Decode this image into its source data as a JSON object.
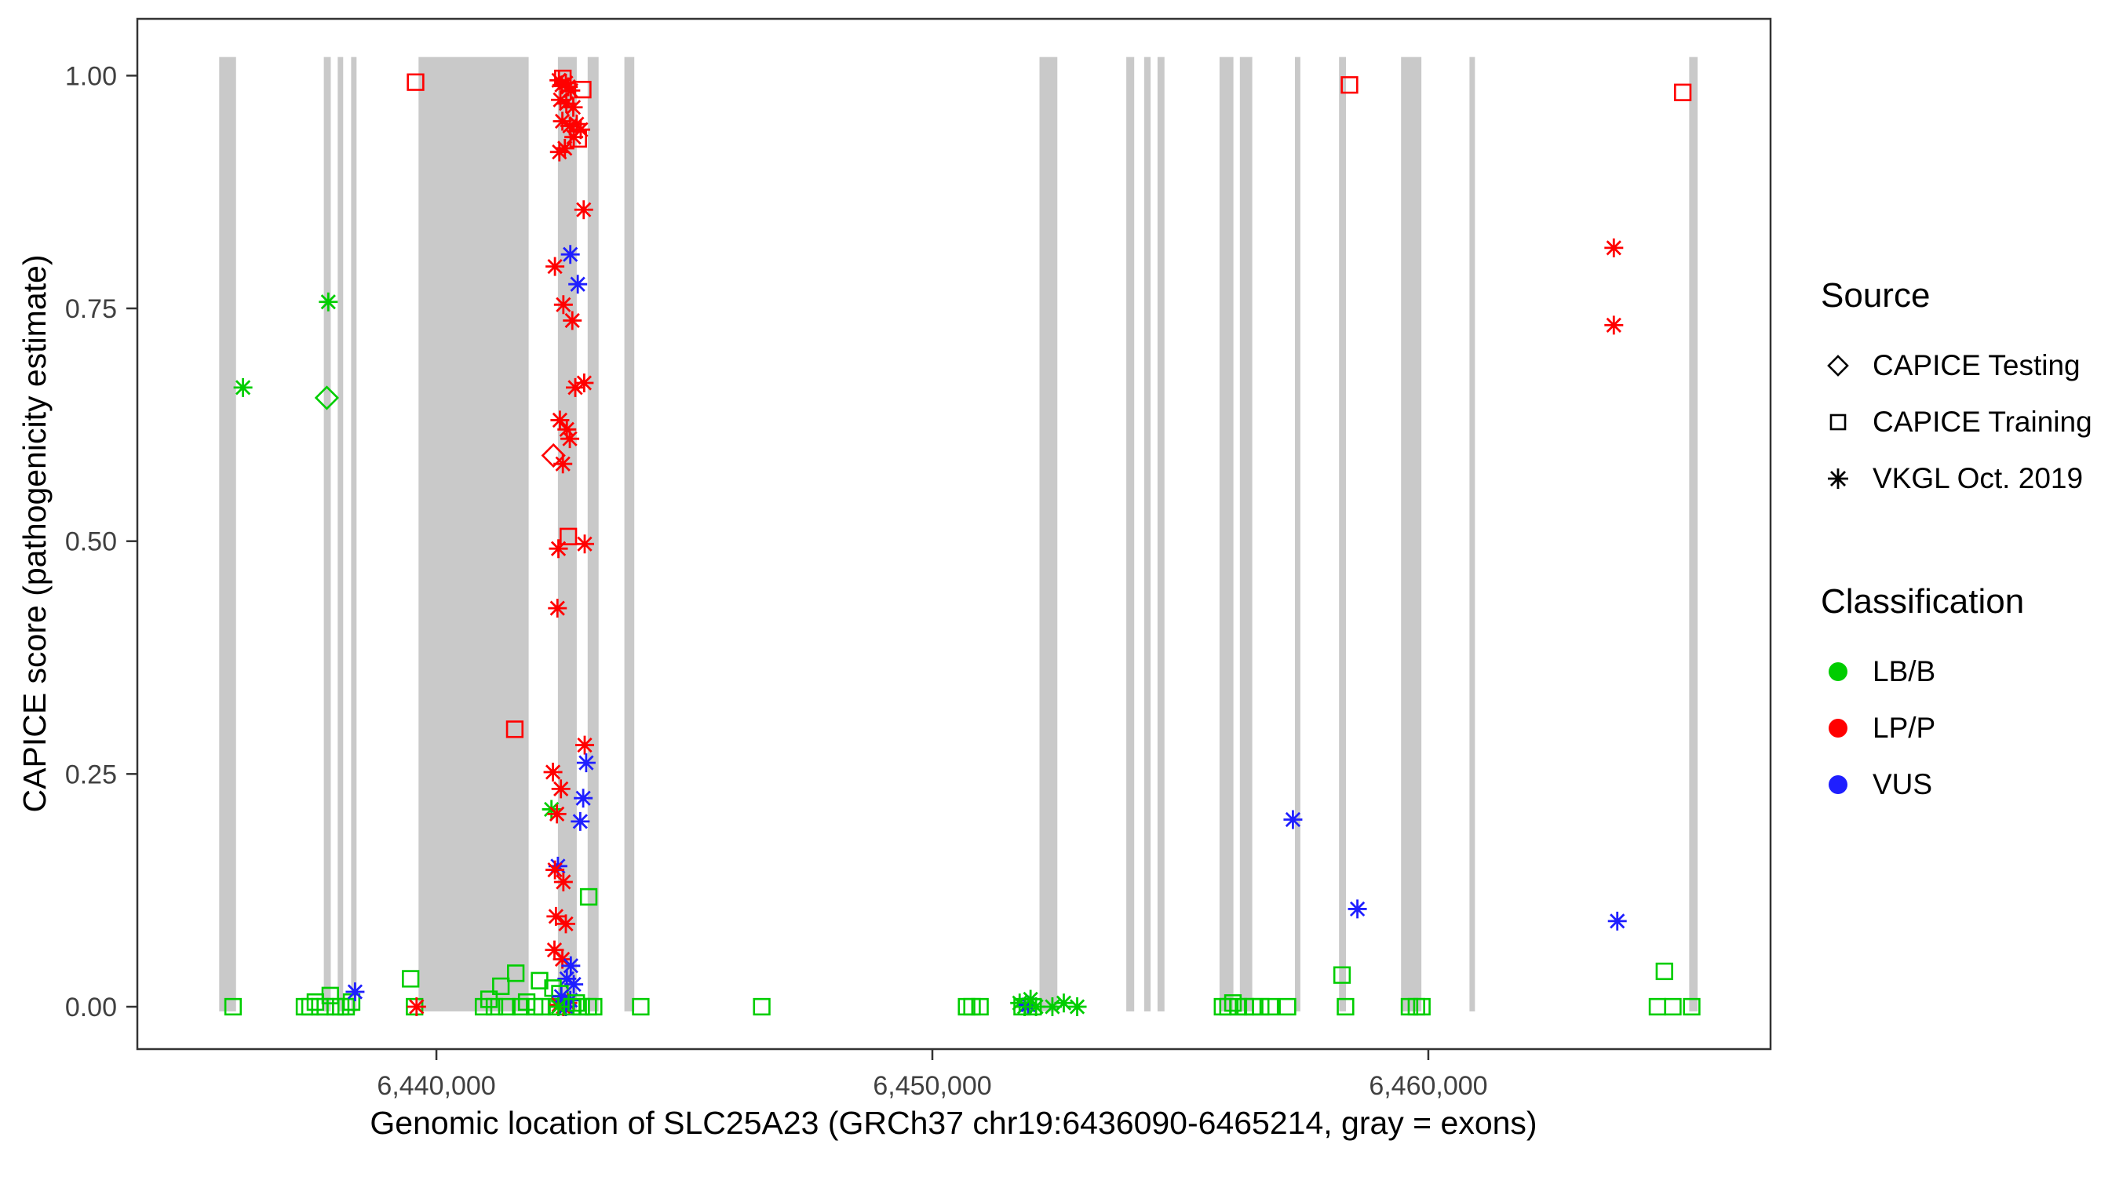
{
  "figure": {
    "background": "#ffffff"
  },
  "chart_data": {
    "type": "scatter",
    "title": "",
    "xlabel": "Genomic location of SLC25A23 (GRCh37 chr19:6436090-6465214, gray = exons)",
    "ylabel": "CAPICE score (pathogenicity estimate)",
    "xlim": [
      6433970,
      6466900
    ],
    "ylim": [
      -0.0455,
      1.061
    ],
    "grid": "off",
    "legend_position": "right",
    "x_ticks": [
      {
        "value": 6440000,
        "label": "6,440,000"
      },
      {
        "value": 6450000,
        "label": "6,450,000"
      },
      {
        "value": 6460000,
        "label": "6,460,000"
      }
    ],
    "y_ticks": [
      {
        "value": 0.0,
        "label": "0.00"
      },
      {
        "value": 0.25,
        "label": "0.25"
      },
      {
        "value": 0.5,
        "label": "0.50"
      },
      {
        "value": 0.75,
        "label": "0.75"
      },
      {
        "value": 1.0,
        "label": "1.00"
      }
    ],
    "colors": {
      "lbb": "#00CD00",
      "lpp": "#FF0000",
      "vus": "#1F1FFF",
      "exon": "#C9C9C9",
      "border": "#333333",
      "tick_text": "#404040",
      "axis_title": "#000000"
    },
    "exon_band_y": [
      -0.005,
      1.02
    ],
    "exons": [
      [
        6435620,
        6435960
      ],
      [
        6437730,
        6437870
      ],
      [
        6438010,
        6438120
      ],
      [
        6438280,
        6438390
      ],
      [
        6439640,
        6441860
      ],
      [
        6442450,
        6442830
      ],
      [
        6443050,
        6443270
      ],
      [
        6443790,
        6443990
      ],
      [
        6452160,
        6452520
      ],
      [
        6453910,
        6454070
      ],
      [
        6454270,
        6454400
      ],
      [
        6454540,
        6454680
      ],
      [
        6455790,
        6456070
      ],
      [
        6456200,
        6456450
      ],
      [
        6457310,
        6457420
      ],
      [
        6458200,
        6458340
      ],
      [
        6459450,
        6459860
      ],
      [
        6460830,
        6460940
      ],
      [
        6465260,
        6465430
      ]
    ],
    "point_format": [
      "genomic_position",
      "capice_score",
      "source_code",
      "classification_code"
    ],
    "source_codes": {
      "T": "CAPICE Testing",
      "R": "CAPICE Training",
      "V": "VKGL Oct. 2019"
    },
    "class_codes": {
      "B": "LB/B",
      "P": "LP/P",
      "U": "VUS"
    },
    "points": [
      [
        6436100,
        0.665,
        "V",
        "B"
      ],
      [
        6437820,
        0.757,
        "V",
        "B"
      ],
      [
        6437790,
        0.654,
        "T",
        "B"
      ],
      [
        6439580,
        0.993,
        "R",
        "P"
      ],
      [
        6435900,
        0.0,
        "R",
        "B"
      ],
      [
        6437340,
        0.0,
        "R",
        "B"
      ],
      [
        6437450,
        0.0,
        "R",
        "B"
      ],
      [
        6437560,
        0.005,
        "R",
        "B"
      ],
      [
        6437650,
        0.0,
        "R",
        "B"
      ],
      [
        6437760,
        0.0,
        "R",
        "B"
      ],
      [
        6437860,
        0.012,
        "R",
        "B"
      ],
      [
        6437960,
        0.0,
        "R",
        "B"
      ],
      [
        6438070,
        0.0,
        "R",
        "B"
      ],
      [
        6438180,
        0.0,
        "R",
        "B"
      ],
      [
        6438290,
        0.005,
        "R",
        "B"
      ],
      [
        6438360,
        0.016,
        "V",
        "U"
      ],
      [
        6439480,
        0.03,
        "R",
        "B"
      ],
      [
        6439560,
        0.0,
        "R",
        "B"
      ],
      [
        6439600,
        0.0,
        "V",
        "P"
      ],
      [
        6440950,
        0.0,
        "R",
        "B"
      ],
      [
        6441060,
        0.008,
        "R",
        "B"
      ],
      [
        6441170,
        0.0,
        "R",
        "B"
      ],
      [
        6441300,
        0.022,
        "R",
        "B"
      ],
      [
        6441420,
        0.0,
        "R",
        "B"
      ],
      [
        6441580,
        0.298,
        "R",
        "P"
      ],
      [
        6441600,
        0.036,
        "R",
        "B"
      ],
      [
        6441700,
        0.0,
        "R",
        "B"
      ],
      [
        6441820,
        0.005,
        "R",
        "B"
      ],
      [
        6441980,
        0.0,
        "R",
        "B"
      ],
      [
        6442080,
        0.028,
        "R",
        "B"
      ],
      [
        6442130,
        0.0,
        "R",
        "B"
      ],
      [
        6442550,
        0.997,
        "R",
        "P"
      ],
      [
        6442950,
        0.985,
        "R",
        "P"
      ],
      [
        6442860,
        0.932,
        "R",
        "P"
      ],
      [
        6442470,
        0.995,
        "V",
        "P"
      ],
      [
        6442530,
        0.99,
        "V",
        "P"
      ],
      [
        6442610,
        0.992,
        "V",
        "P"
      ],
      [
        6442660,
        0.988,
        "V",
        "P"
      ],
      [
        6442710,
        0.984,
        "V",
        "P"
      ],
      [
        6442500,
        0.974,
        "V",
        "P"
      ],
      [
        6442620,
        0.97,
        "V",
        "P"
      ],
      [
        6442760,
        0.966,
        "V",
        "P"
      ],
      [
        6442540,
        0.951,
        "V",
        "P"
      ],
      [
        6442690,
        0.946,
        "V",
        "P"
      ],
      [
        6442830,
        0.948,
        "V",
        "P"
      ],
      [
        6442910,
        0.942,
        "V",
        "P"
      ],
      [
        6442770,
        0.934,
        "V",
        "P"
      ],
      [
        6442590,
        0.922,
        "V",
        "P"
      ],
      [
        6442480,
        0.918,
        "V",
        "P"
      ],
      [
        6442970,
        0.856,
        "V",
        "P"
      ],
      [
        6442390,
        0.795,
        "V",
        "P"
      ],
      [
        6442700,
        0.808,
        "V",
        "U"
      ],
      [
        6442850,
        0.776,
        "V",
        "U"
      ],
      [
        6442560,
        0.754,
        "V",
        "P"
      ],
      [
        6442740,
        0.737,
        "V",
        "P"
      ],
      [
        6442980,
        0.67,
        "V",
        "P"
      ],
      [
        6442800,
        0.665,
        "V",
        "P"
      ],
      [
        6442490,
        0.63,
        "V",
        "P"
      ],
      [
        6442630,
        0.62,
        "V",
        "P"
      ],
      [
        6442690,
        0.61,
        "V",
        "P"
      ],
      [
        6442360,
        0.592,
        "T",
        "P"
      ],
      [
        6442550,
        0.583,
        "V",
        "P"
      ],
      [
        6442660,
        0.505,
        "R",
        "P"
      ],
      [
        6442460,
        0.492,
        "V",
        "P"
      ],
      [
        6442990,
        0.497,
        "V",
        "P"
      ],
      [
        6442440,
        0.428,
        "V",
        "P"
      ],
      [
        6442990,
        0.281,
        "V",
        "P"
      ],
      [
        6443020,
        0.262,
        "V",
        "U"
      ],
      [
        6442350,
        0.252,
        "V",
        "P"
      ],
      [
        6442510,
        0.234,
        "V",
        "P"
      ],
      [
        6442960,
        0.224,
        "V",
        "U"
      ],
      [
        6442320,
        0.212,
        "V",
        "B"
      ],
      [
        6442430,
        0.207,
        "V",
        "P"
      ],
      [
        6442900,
        0.199,
        "V",
        "U"
      ],
      [
        6442450,
        0.151,
        "V",
        "U"
      ],
      [
        6442390,
        0.147,
        "V",
        "P"
      ],
      [
        6442560,
        0.134,
        "V",
        "P"
      ],
      [
        6443070,
        0.118,
        "R",
        "B"
      ],
      [
        6442410,
        0.097,
        "V",
        "P"
      ],
      [
        6442610,
        0.089,
        "V",
        "P"
      ],
      [
        6442380,
        0.061,
        "V",
        "P"
      ],
      [
        6442540,
        0.051,
        "V",
        "P"
      ],
      [
        6442710,
        0.044,
        "V",
        "U"
      ],
      [
        6442630,
        0.03,
        "V",
        "U"
      ],
      [
        6442770,
        0.024,
        "V",
        "U"
      ],
      [
        6442350,
        0.02,
        "R",
        "B"
      ],
      [
        6442420,
        0.0,
        "R",
        "B"
      ],
      [
        6442490,
        0.014,
        "R",
        "B"
      ],
      [
        6442470,
        0.002,
        "V",
        "P"
      ],
      [
        6442560,
        0.0,
        "V",
        "P"
      ],
      [
        6442650,
        0.004,
        "V",
        "P"
      ],
      [
        6442520,
        0.011,
        "V",
        "U"
      ],
      [
        6442610,
        0.0,
        "V",
        "U"
      ],
      [
        6442700,
        0.007,
        "V",
        "U"
      ],
      [
        6442460,
        0.0,
        "V",
        "B"
      ],
      [
        6442730,
        0.0,
        "R",
        "B"
      ],
      [
        6442820,
        0.004,
        "R",
        "B"
      ],
      [
        6442920,
        0.0,
        "R",
        "B"
      ],
      [
        6443060,
        0.0,
        "R",
        "B"
      ],
      [
        6443170,
        0.0,
        "R",
        "B"
      ],
      [
        6444120,
        0.0,
        "R",
        "B"
      ],
      [
        6446560,
        0.0,
        "R",
        "B"
      ],
      [
        6450690,
        0.0,
        "R",
        "B"
      ],
      [
        6450800,
        0.0,
        "R",
        "B"
      ],
      [
        6450960,
        0.0,
        "R",
        "B"
      ],
      [
        6451760,
        0.004,
        "V",
        "B"
      ],
      [
        6451860,
        0.0,
        "V",
        "B"
      ],
      [
        6451930,
        0.002,
        "V",
        "U"
      ],
      [
        6451980,
        0.008,
        "V",
        "B"
      ],
      [
        6451810,
        0.0,
        "R",
        "B"
      ],
      [
        6452030,
        0.0,
        "R",
        "B"
      ],
      [
        6452090,
        0.0,
        "V",
        "B"
      ],
      [
        6452420,
        0.0,
        "V",
        "B"
      ],
      [
        6452650,
        0.004,
        "V",
        "B"
      ],
      [
        6452920,
        0.0,
        "V",
        "B"
      ],
      [
        6455850,
        0.0,
        "R",
        "B"
      ],
      [
        6455960,
        0.0,
        "R",
        "B"
      ],
      [
        6456060,
        0.004,
        "R",
        "B"
      ],
      [
        6456170,
        0.0,
        "R",
        "B"
      ],
      [
        6456310,
        0.0,
        "R",
        "B"
      ],
      [
        6456460,
        0.0,
        "R",
        "B"
      ],
      [
        6456620,
        0.0,
        "R",
        "B"
      ],
      [
        6456810,
        0.0,
        "R",
        "B"
      ],
      [
        6457160,
        0.0,
        "R",
        "B"
      ],
      [
        6457270,
        0.201,
        "V",
        "U"
      ],
      [
        6458260,
        0.034,
        "R",
        "B"
      ],
      [
        6458330,
        0.0,
        "R",
        "B"
      ],
      [
        6458410,
        0.99,
        "R",
        "P"
      ],
      [
        6458570,
        0.105,
        "V",
        "U"
      ],
      [
        6459620,
        0.0,
        "R",
        "B"
      ],
      [
        6459760,
        0.0,
        "R",
        "B"
      ],
      [
        6459870,
        0.0,
        "R",
        "B"
      ],
      [
        6463740,
        0.815,
        "V",
        "P"
      ],
      [
        6463740,
        0.732,
        "V",
        "P"
      ],
      [
        6463810,
        0.092,
        "V",
        "U"
      ],
      [
        6464760,
        0.038,
        "R",
        "B"
      ],
      [
        6464620,
        0.0,
        "R",
        "B"
      ],
      [
        6464930,
        0.0,
        "R",
        "B"
      ],
      [
        6465310,
        0.0,
        "R",
        "B"
      ],
      [
        6465130,
        0.982,
        "R",
        "P"
      ]
    ]
  },
  "legend": {
    "source_title": "Source",
    "source_items": [
      {
        "label": "CAPICE Testing",
        "marker": "diamond"
      },
      {
        "label": "CAPICE Training",
        "marker": "square"
      },
      {
        "label": "VKGL Oct. 2019",
        "marker": "asterisk"
      }
    ],
    "classification_title": "Classification",
    "classification_items": [
      {
        "label": "LB/B",
        "color": "#00CD00"
      },
      {
        "label": "LP/P",
        "color": "#FF0000"
      },
      {
        "label": "VUS",
        "color": "#1F1FFF"
      }
    ]
  }
}
